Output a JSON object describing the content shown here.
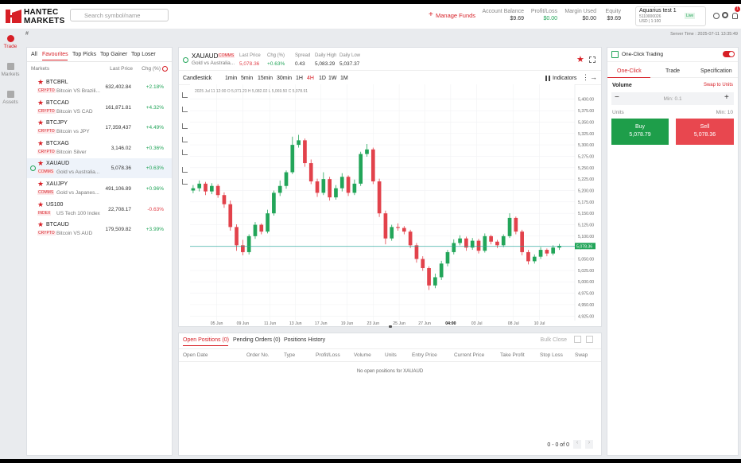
{
  "header": {
    "logo": {
      "line1": "HANTEC",
      "line2": "MARKETS"
    },
    "search_placeholder": "Search symbol/name",
    "manage_funds": "Manage Funds",
    "stats": [
      {
        "label": "Account Balance",
        "value": "$9.69"
      },
      {
        "label": "Profit/Loss",
        "value": "$0.00"
      },
      {
        "label": "Margin Used",
        "value": "$0.00"
      },
      {
        "label": "Equity",
        "value": "$9.69"
      }
    ],
    "account": {
      "name": "Aquarius test 1",
      "id": "5110000026",
      "currency": "USD | 1:100",
      "badge": "Live"
    },
    "notifications": "1",
    "server_time": "Server Time : 2025-07-11 13:35:49"
  },
  "nav": [
    "Trade",
    "Markets",
    "Assets"
  ],
  "watchlist": {
    "tabs": [
      "All",
      "Favourites",
      "Top Picks",
      "Top Gainer",
      "Top Loser"
    ],
    "columns": [
      "Markets",
      "Last Price",
      "Chg (%)"
    ],
    "rows": [
      {
        "symbol": "BTCBRL",
        "tag": "CRYPTO",
        "name": "Bitcoin VS Brazili...",
        "price": "632,402.84",
        "change": "+2.18%"
      },
      {
        "symbol": "BTCCAD",
        "tag": "CRYPTO",
        "name": "Bitcoin VS CAD",
        "price": "161,871.81",
        "change": "+4.32%"
      },
      {
        "symbol": "BTCJPY",
        "tag": "CRYPTO",
        "name": "Bitcoin vs JPY",
        "price": "17,359,437",
        "change": "+4.49%"
      },
      {
        "symbol": "BTCXAG",
        "tag": "CRYPTO",
        "name": "Bitcoin Silver",
        "price": "3,146.02",
        "change": "+0.36%"
      },
      {
        "symbol": "XAUAUD",
        "tag": "COMMS",
        "name": "Gold vs Australia...",
        "price": "5,078.36",
        "change": "+0.63%"
      },
      {
        "symbol": "XAUJPY",
        "tag": "COMMS",
        "name": "Gold vs Japanes...",
        "price": "491,106.89",
        "change": "+0.96%"
      },
      {
        "symbol": "US100",
        "tag": "INDEX",
        "name": "US Tech 100 Index",
        "price": "22,708.17",
        "change": "-0.63%"
      },
      {
        "symbol": "BTCAUD",
        "tag": "CRYPTO",
        "name": "Bitcoin VS AUD",
        "price": "179,509.82",
        "change": "+3.99%"
      }
    ]
  },
  "instrument": {
    "symbol": "XAUAUD",
    "tag": "COMMS",
    "name": "Gold vs Australia...",
    "stats": [
      {
        "label": "Last Price",
        "value": "5,078.36"
      },
      {
        "label": "Chg (%)",
        "value": "+0.63%"
      },
      {
        "label": "Spread",
        "value": "0.43"
      },
      {
        "label": "Daily High",
        "value": "5,083.29"
      },
      {
        "label": "Daily Low",
        "value": "5,037.37"
      }
    ]
  },
  "toolbar": {
    "chart_type": "Candlestick",
    "timeframes": [
      "1min",
      "5min",
      "15min",
      "30min",
      "1H",
      "4H",
      "1D",
      "1W",
      "1M"
    ],
    "active_timeframe": 5,
    "indicators": "Indicators"
  },
  "chart_data": {
    "type": "candlestick",
    "legend": "2025 Jul 11  12:00  O 5,071.23  H 5,082.02  L 5,069.50  C 5,078.91",
    "xlim": [
      -0.5,
      61.5
    ],
    "xticks": [
      {
        "value": 3.8,
        "label": "05 Jun"
      },
      {
        "value": 8,
        "label": "09 Jun"
      },
      {
        "value": 12.4,
        "label": "11 Jun"
      },
      {
        "value": 16.5,
        "label": "13 Jun"
      },
      {
        "value": 20.6,
        "label": "17 Jun"
      },
      {
        "value": 24.8,
        "label": "19 Jun"
      },
      {
        "value": 29,
        "label": "23 Jun"
      },
      {
        "value": 33.2,
        "label": "25 Jun"
      },
      {
        "value": 37.3,
        "label": "27 Jun"
      },
      {
        "value": 41.5,
        "label": "04:00"
      },
      {
        "value": 45.7,
        "label": "03 Jul"
      },
      {
        "value": 51.6,
        "label": "08 Jul"
      },
      {
        "value": 55.8,
        "label": "10 Jul"
      }
    ],
    "ylim": [
      4915,
      5410
    ],
    "yticks": [
      {
        "value": 5400,
        "label": "5,400.00"
      },
      {
        "value": 5375,
        "label": "5,375.00"
      },
      {
        "value": 5350,
        "label": "5,350.00"
      },
      {
        "value": 5325,
        "label": "5,325.00"
      },
      {
        "value": 5300,
        "label": "5,300.00"
      },
      {
        "value": 5275,
        "label": "5,275.00"
      },
      {
        "value": 5250,
        "label": "5,250.00"
      },
      {
        "value": 5225,
        "label": "5,225.00"
      },
      {
        "value": 5200,
        "label": "5,200.00"
      },
      {
        "value": 5175,
        "label": "5,175.00"
      },
      {
        "value": 5150,
        "label": "5,150.00"
      },
      {
        "value": 5125,
        "label": "5,125.00"
      },
      {
        "value": 5100,
        "label": "5,100.00"
      },
      {
        "value": 5075,
        "label": "5,075.00"
      },
      {
        "value": 5050,
        "label": "5,050.00"
      },
      {
        "value": 5025,
        "label": "5,025.00"
      },
      {
        "value": 5000,
        "label": "5,000.00"
      },
      {
        "value": 4975,
        "label": "4,975.00"
      },
      {
        "value": 4950,
        "label": "4,950.00"
      },
      {
        "value": 4925,
        "label": "4,925.00"
      }
    ],
    "open": [
      5200,
      5205,
      5215,
      5198,
      5210,
      5190,
      5170,
      5120,
      5080,
      5065,
      5100,
      5125,
      5110,
      5150,
      5195,
      5210,
      5240,
      5300,
      5310,
      5260,
      5220,
      5195,
      5225,
      5185,
      5205,
      5230,
      5195,
      5215,
      5280,
      5290,
      5220,
      5150,
      5095,
      5120,
      5118,
      5110,
      5080,
      5050,
      5030,
      4992,
      5010,
      5040,
      5065,
      5085,
      5095,
      5075,
      5090,
      5068,
      5100,
      5088,
      5080,
      5100,
      5140,
      5110,
      5065,
      5045,
      5055,
      5070,
      5062,
      5075
    ],
    "high": [
      5212,
      5222,
      5219,
      5216,
      5214,
      5196,
      5178,
      5126,
      5092,
      5104,
      5131,
      5128,
      5158,
      5200,
      5222,
      5244,
      5318,
      5322,
      5314,
      5268,
      5226,
      5240,
      5230,
      5212,
      5238,
      5233,
      5224,
      5285,
      5302,
      5294,
      5226,
      5156,
      5125,
      5128,
      5122,
      5114,
      5085,
      5056,
      5034,
      5018,
      5046,
      5070,
      5093,
      5102,
      5099,
      5096,
      5094,
      5106,
      5103,
      5092,
      5104,
      5150,
      5143,
      5114,
      5070,
      5060,
      5076,
      5073,
      5080,
      5083
    ],
    "low": [
      5194,
      5198,
      5190,
      5192,
      5184,
      5162,
      5112,
      5068,
      5058,
      5060,
      5094,
      5104,
      5106,
      5145,
      5188,
      5204,
      5236,
      5294,
      5252,
      5214,
      5186,
      5190,
      5178,
      5180,
      5198,
      5188,
      5190,
      5210,
      5274,
      5214,
      5142,
      5082,
      5090,
      5112,
      5104,
      5074,
      5042,
      5024,
      4982,
      4986,
      5004,
      5034,
      5060,
      5080,
      5068,
      5070,
      5062,
      5064,
      5082,
      5074,
      5076,
      5096,
      5104,
      5058,
      5038,
      5040,
      5050,
      5056,
      5058,
      5070
    ],
    "close": [
      5205,
      5215,
      5198,
      5210,
      5190,
      5170,
      5120,
      5080,
      5065,
      5100,
      5125,
      5110,
      5150,
      5195,
      5210,
      5240,
      5300,
      5310,
      5260,
      5220,
      5195,
      5225,
      5185,
      5205,
      5230,
      5195,
      5215,
      5280,
      5290,
      5220,
      5150,
      5095,
      5120,
      5118,
      5110,
      5080,
      5050,
      5030,
      4992,
      5010,
      5040,
      5065,
      5085,
      5095,
      5075,
      5090,
      5068,
      5100,
      5088,
      5080,
      5100,
      5140,
      5110,
      5065,
      5045,
      5055,
      5070,
      5062,
      5075,
      5078
    ],
    "up_color": "#22a559",
    "down_color": "#e2424b",
    "grid": true,
    "last_price": {
      "value": 5078.36,
      "label": "5,078.36"
    }
  },
  "positions": {
    "tabs": [
      "Open Positions (0)",
      "Pending Orders (0)",
      "Positions History"
    ],
    "bulk_close": "Bulk Close",
    "columns": [
      "Open Date",
      "Order No.",
      "Type",
      "Profit/Loss",
      "Volume",
      "Units",
      "Entry Price",
      "Current Price",
      "Take Profit",
      "Stop Loss",
      "Swap"
    ],
    "empty": "No open positions for XAUAUD",
    "pagination": "0 - 0 of 0"
  },
  "order_panel": {
    "title": "One-Click Trading",
    "tabs": [
      "One-Click",
      "Trade",
      "Specification"
    ],
    "volume_label": "Volume",
    "swap": "Swap to Units",
    "volume_placeholder": "Min: 0.1",
    "units_label": "Units",
    "units_min": "Min: 10",
    "buy": {
      "label": "Buy",
      "price": "5,078.79"
    },
    "sell": {
      "label": "Sell",
      "price": "5,078.36"
    }
  }
}
